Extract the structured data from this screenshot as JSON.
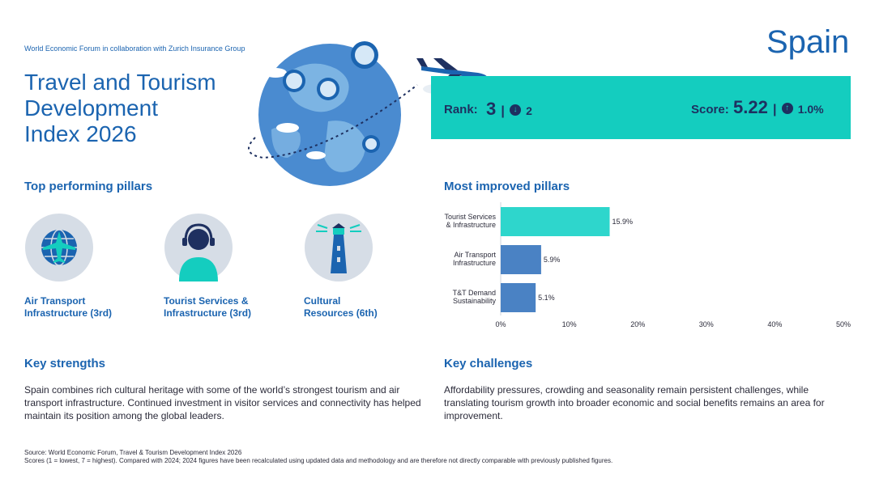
{
  "header": {
    "org": "World Economic Forum in collaboration with Zurich Insurance Group",
    "title_lines": [
      "Travel and Tourism",
      "Development",
      "Index 2026"
    ],
    "country": "Spain"
  },
  "rank": {
    "label": "Rank:",
    "value": "3",
    "sep": "|",
    "change": "2",
    "change_direction": "down"
  },
  "score": {
    "label": "Score:",
    "value": "5.22",
    "sep": "|",
    "change": "1.0%",
    "change_direction": "up"
  },
  "colors": {
    "teal": "#14cdbf",
    "blue": "#1b64b0",
    "bar_teal": "#2ed6cc",
    "bar_blue": "#4a82c4"
  },
  "top_pillars": {
    "heading": "Top performing pillars",
    "items": [
      {
        "icon": "airplane-globe-icon",
        "line1": "Air Transport",
        "line2": "Infrastructure (3rd)"
      },
      {
        "icon": "headset-agent-icon",
        "line1": "Tourist Services &",
        "line2": "Infrastructure (3rd)"
      },
      {
        "icon": "lighthouse-icon",
        "line1": "Cultural",
        "line2": "Resources (6th)"
      }
    ]
  },
  "most_improved": {
    "heading": "Most improved pillars"
  },
  "chart_data": {
    "type": "bar",
    "orientation": "horizontal",
    "categories": [
      [
        "Tourist Services",
        "& Infrastructure"
      ],
      [
        "Air Transport",
        "Infrastructure"
      ],
      [
        "T&T Demand",
        "Sustainability"
      ]
    ],
    "values": [
      15.9,
      5.9,
      5.1
    ],
    "value_labels": [
      "15.9%",
      "5.9%",
      "5.1%"
    ],
    "bar_colors": [
      "#2ed6cc",
      "#4a82c4",
      "#4a82c4"
    ],
    "xlim": [
      0,
      50
    ],
    "xticks": [
      "0%",
      "10%",
      "20%",
      "30%",
      "40%",
      "50%"
    ],
    "grid": false
  },
  "strengths": {
    "heading": "Key strengths",
    "text": "Spain combines rich cultural heritage with some of the world’s strongest tourism and air transport infrastructure. Continued investment in visitor services and connectivity has helped maintain its position among the global leaders."
  },
  "challenges": {
    "heading": "Key challenges",
    "text": "Affordability pressures, crowding and seasonality remain persistent challenges, while translating tourism growth into broader economic and social benefits remains an area for improvement."
  },
  "source": {
    "line1": "Source: World Economic Forum, Travel & Tourism Development Index 2026",
    "line2": "Scores (1 = lowest, 7 = highest). Compared with 2024; 2024 figures have been recalculated using updated data and methodology and are therefore not directly comparable with previously published figures."
  }
}
